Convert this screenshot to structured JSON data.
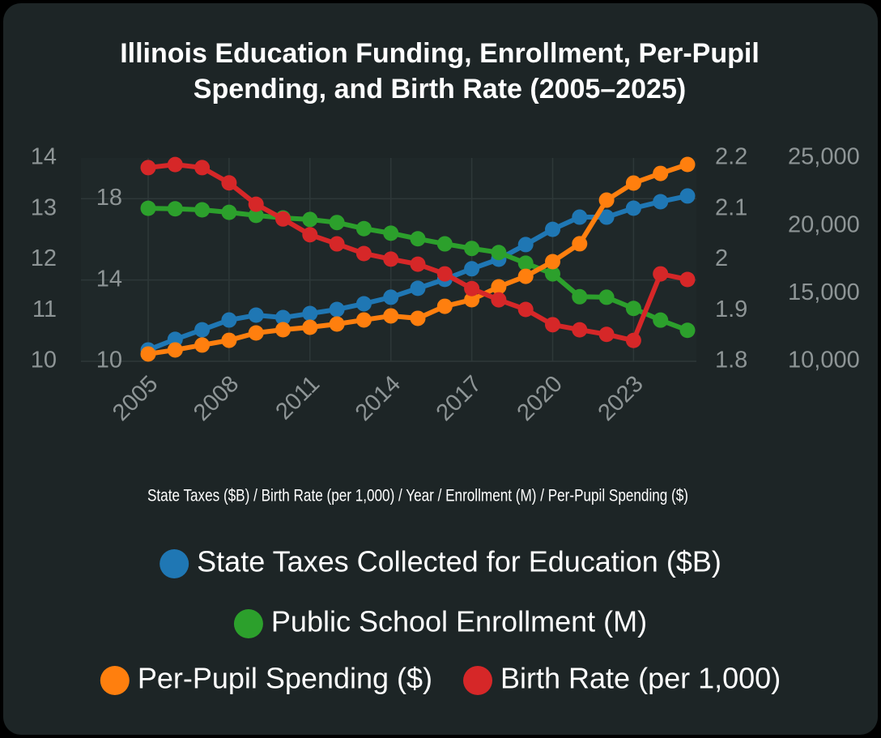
{
  "chart_data": {
    "type": "line",
    "title": "Illinois Education Funding, Enrollment, Per-Pupil Spending, and Birth Rate (2005–2025)",
    "x_label": "State Taxes ($B) / Birth Rate (per 1,000) / Year / Enrollment (M) / Per-Pupil Spending ($)",
    "x": [
      2005,
      2006,
      2007,
      2008,
      2009,
      2010,
      2011,
      2012,
      2013,
      2014,
      2015,
      2016,
      2017,
      2018,
      2019,
      2020,
      2021,
      2022,
      2023,
      2024,
      2025
    ],
    "xlim": [
      2005,
      2025
    ],
    "xticks": [
      2005,
      2008,
      2011,
      2014,
      2017,
      2020,
      2023
    ],
    "ylim": [
      10,
      20
    ],
    "yticks": [
      10,
      14,
      18
    ],
    "y2lim": [
      1.8,
      2.2
    ],
    "y2ticks": [
      1.8,
      1.9,
      2.0,
      2.1,
      2.2
    ],
    "y3lim": [
      10,
      14
    ],
    "y3ticks": [
      10,
      11,
      12,
      13,
      14
    ],
    "y4lim": [
      10000,
      25000
    ],
    "y4ticks": [
      {
        "value": 10000,
        "label": "10,000"
      },
      {
        "value": 15000,
        "label": "15,000"
      },
      {
        "value": 20000,
        "label": "20,000"
      },
      {
        "value": 25000,
        "label": "25,000"
      }
    ],
    "grid": true,
    "series": [
      {
        "name": "State Taxes Collected for Education ($B)",
        "color": "#1f77b4",
        "axis": "y",
        "values": [
          10.56,
          11.08,
          11.55,
          12.03,
          12.27,
          12.15,
          12.35,
          12.55,
          12.83,
          13.15,
          13.59,
          14.03,
          14.55,
          15.02,
          15.74,
          16.49,
          17.09,
          17.09,
          17.53,
          17.85,
          18.13
        ]
      },
      {
        "name": "Public School Enrollment (M)",
        "color": "#2ca02c",
        "axis": "y2",
        "values": [
          2.101,
          2.1,
          2.098,
          2.093,
          2.087,
          2.082,
          2.079,
          2.073,
          2.061,
          2.052,
          2.041,
          2.031,
          2.022,
          2.014,
          1.993,
          1.972,
          1.927,
          1.926,
          1.904,
          1.881,
          1.861
        ]
      },
      {
        "name": "Per-Pupil Spending ($)",
        "color": "#ff7f0e",
        "axis": "y4",
        "values": [
          10540,
          10840,
          11200,
          11550,
          12090,
          12330,
          12510,
          12750,
          13050,
          13350,
          13170,
          14060,
          14540,
          15500,
          16270,
          17350,
          18670,
          21890,
          23150,
          23860,
          24520
        ]
      },
      {
        "name": "Birth Rate (per 1,000)",
        "color": "#d62728",
        "axis": "y3",
        "values": [
          13.81,
          13.87,
          13.81,
          13.51,
          13.09,
          12.8,
          12.49,
          12.31,
          12.12,
          12.01,
          11.91,
          11.72,
          11.43,
          11.21,
          11.02,
          10.72,
          10.62,
          10.53,
          10.41,
          11.72,
          11.61
        ]
      }
    ]
  }
}
